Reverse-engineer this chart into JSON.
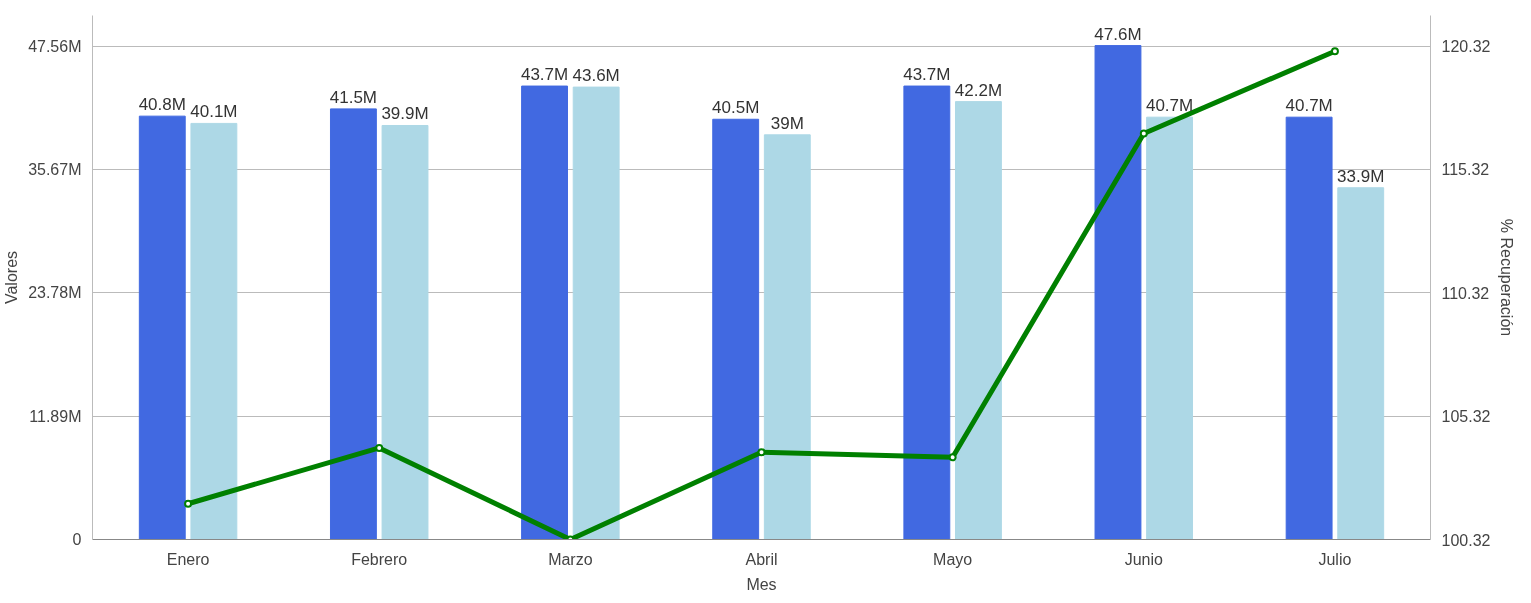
{
  "chart_data": {
    "type": "bar",
    "xlabel": "Mes",
    "ylabel": "Valores",
    "y2label": "% Recuperación",
    "categories": [
      "Enero",
      "Febrero",
      "Marzo",
      "Abril",
      "Mayo",
      "Junio",
      "Julio"
    ],
    "series": [
      {
        "color": "#4169e1",
        "values": [
          40.8,
          41.5,
          43.7,
          40.5,
          43.7,
          47.6,
          40.7
        ],
        "value_labels": [
          "40.8M",
          "41.5M",
          "43.7M",
          "40.5M",
          "43.7M",
          "47.6M",
          "40.7M"
        ]
      },
      {
        "color": "#add8e6",
        "values": [
          40.1,
          39.9,
          43.6,
          39,
          42.2,
          40.7,
          33.9
        ],
        "value_labels": [
          "40.1M",
          "39.9M",
          "43.6M",
          "39M",
          "42.2M",
          "40.7M",
          "33.9M"
        ]
      },
      {
        "type": "line",
        "axis": "y2",
        "color": "#008000",
        "values": [
          101.77,
          104.03,
          100.32,
          103.86,
          103.65,
          116.78,
          120.11
        ]
      }
    ],
    "ylim": [
      0,
      50.5
    ],
    "yticks": [
      0,
      {
        "value": 11.89,
        "label": "11.89M"
      },
      {
        "value": 23.78,
        "label": "23.78M"
      },
      {
        "value": 35.67,
        "label": "35.67M"
      },
      {
        "value": 47.56,
        "label": "47.56M"
      }
    ],
    "y2lim": [
      100.32,
      121.56
    ],
    "y2ticks": [
      100.32,
      105.32,
      110.32,
      115.32,
      120.32
    ],
    "grid": "y",
    "marker": "circle",
    "line_style": "solid"
  }
}
